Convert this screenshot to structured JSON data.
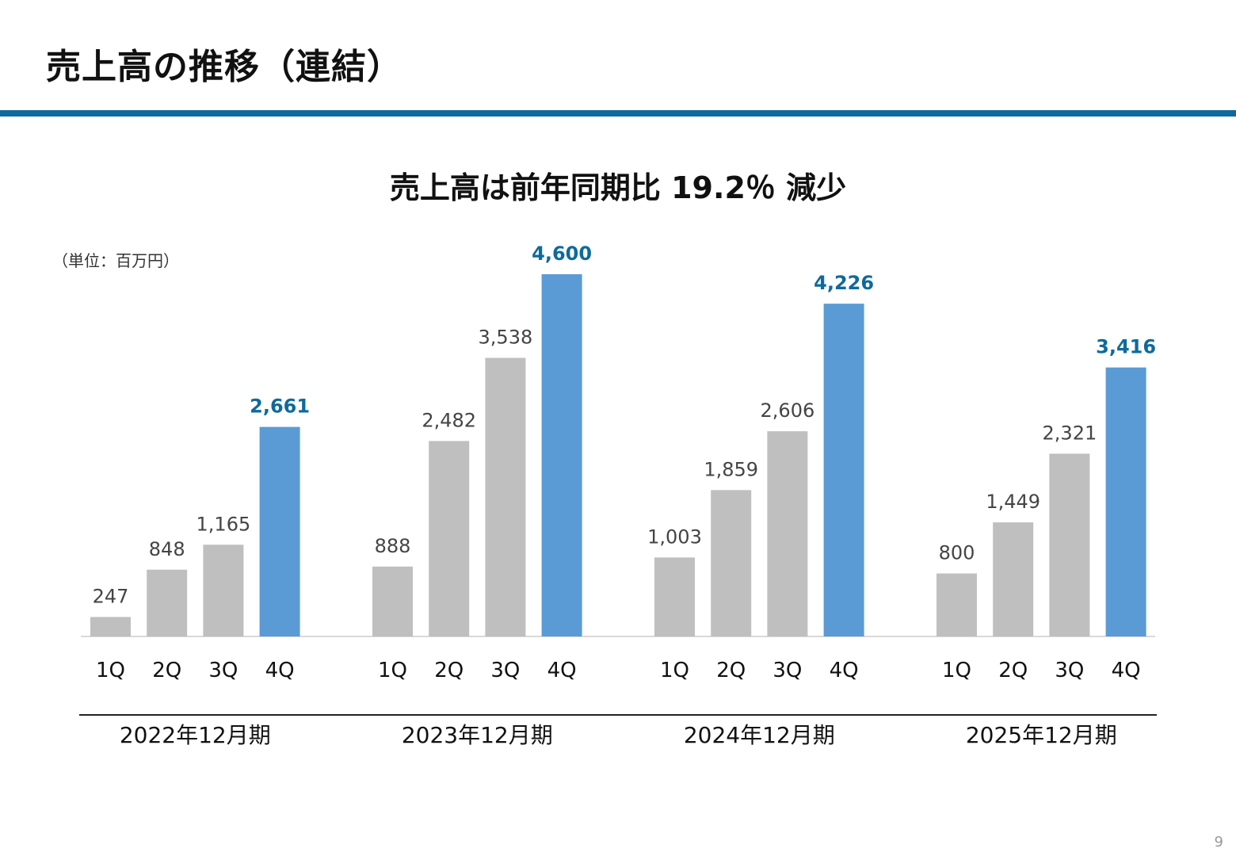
{
  "title": "売上高の推移（連結）",
  "headline": "売上高は前年同期比 19.2％ 減少",
  "unit_label": "（単位：百万円）",
  "page_number": "9",
  "colors": {
    "accent_rule": "#0e6a9c",
    "bar_normal": "#bfbfbf",
    "bar_highlight": "#5b9bd5",
    "label_highlight": "#0e6a9c"
  },
  "chart_data": {
    "type": "bar",
    "unit": "百万円",
    "ylim": [
      0,
      4600
    ],
    "grid": false,
    "legend": "none",
    "groups": [
      {
        "label": "2022年12月期",
        "quarters": [
          "1Q",
          "2Q",
          "3Q",
          "4Q"
        ],
        "values": [
          247,
          848,
          1165,
          2661
        ],
        "value_labels": [
          "247",
          "848",
          "1,165",
          "2,661"
        ]
      },
      {
        "label": "2023年12月期",
        "quarters": [
          "1Q",
          "2Q",
          "3Q",
          "4Q"
        ],
        "values": [
          888,
          2482,
          3538,
          4600
        ],
        "value_labels": [
          "888",
          "2,482",
          "3,538",
          "4,600"
        ]
      },
      {
        "label": "2024年12月期",
        "quarters": [
          "1Q",
          "2Q",
          "3Q",
          "4Q"
        ],
        "values": [
          1003,
          1859,
          2606,
          4226
        ],
        "value_labels": [
          "1,003",
          "1,859",
          "2,606",
          "4,226"
        ]
      },
      {
        "label": "2025年12月期",
        "quarters": [
          "1Q",
          "2Q",
          "3Q",
          "4Q"
        ],
        "values": [
          800,
          1449,
          2321,
          3416
        ],
        "value_labels": [
          "800",
          "1,449",
          "2,321",
          "3,416"
        ]
      }
    ],
    "highlight_quarter": "4Q"
  }
}
